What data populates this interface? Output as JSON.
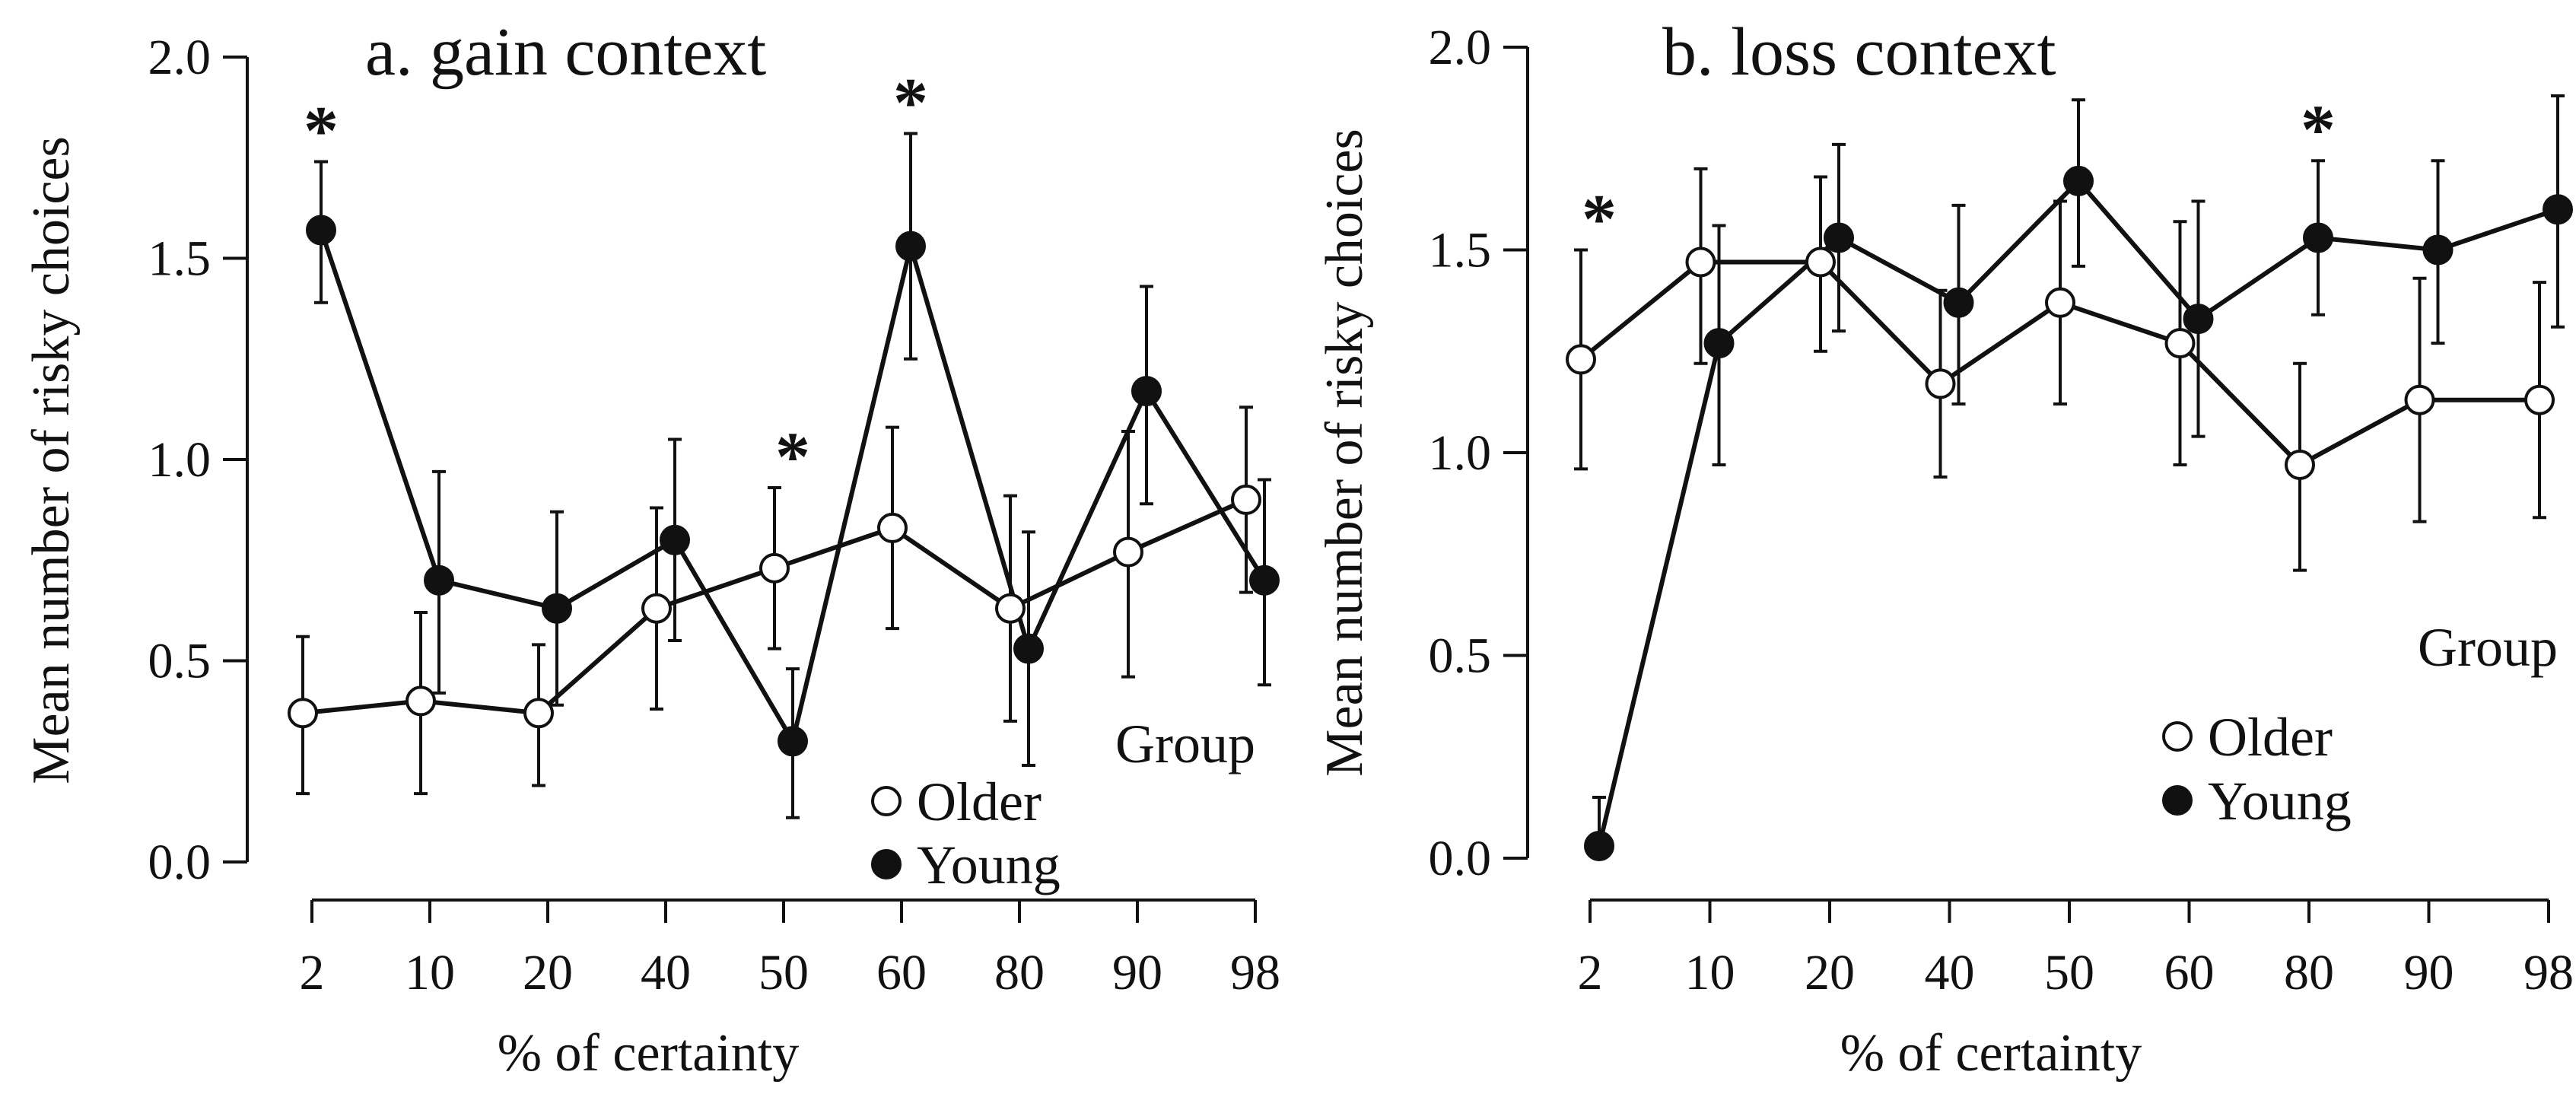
{
  "chart_data": [
    {
      "type": "line",
      "title": "a. gain context",
      "xlabel": "% of certainty",
      "ylabel": "Mean number of risky choices",
      "categories": [
        "2",
        "10",
        "20",
        "40",
        "50",
        "60",
        "80",
        "90",
        "98"
      ],
      "ylim": [
        0,
        2
      ],
      "yticks": [
        "0.0",
        "0.5",
        "1.0",
        "1.5",
        "2.0"
      ],
      "legend_title": "Group",
      "legend_position": "bottom-right",
      "series": [
        {
          "name": "Older",
          "marker": "open-circle",
          "values": [
            0.37,
            0.4,
            0.37,
            0.63,
            0.73,
            0.83,
            0.63,
            0.77,
            0.9
          ],
          "err_low": [
            0.17,
            0.17,
            0.19,
            0.38,
            0.53,
            0.58,
            0.35,
            0.46,
            0.67
          ],
          "err_high": [
            0.56,
            0.62,
            0.54,
            0.88,
            0.93,
            1.08,
            0.91,
            1.07,
            1.13
          ]
        },
        {
          "name": "Young",
          "marker": "filled-circle",
          "values": [
            1.57,
            0.7,
            0.63,
            0.8,
            0.3,
            1.53,
            0.53,
            1.17,
            0.7
          ],
          "err_low": [
            1.39,
            0.42,
            0.39,
            0.55,
            0.11,
            1.25,
            0.24,
            0.89,
            0.44
          ],
          "err_high": [
            1.74,
            0.97,
            0.87,
            1.05,
            0.48,
            1.81,
            0.82,
            1.43,
            0.95
          ]
        }
      ],
      "significance": [
        {
          "category": "2",
          "label": "*"
        },
        {
          "category": "50",
          "label": "*"
        },
        {
          "category": "60",
          "label": "*"
        }
      ]
    },
    {
      "type": "line",
      "title": "b. loss context",
      "xlabel": "% of certainty",
      "ylabel": "Mean number of risky choices",
      "categories": [
        "2",
        "10",
        "20",
        "40",
        "50",
        "60",
        "80",
        "90",
        "98"
      ],
      "ylim": [
        0,
        2
      ],
      "yticks": [
        "0.0",
        "0.5",
        "1.0",
        "1.5",
        "2.0"
      ],
      "legend_title": "Group",
      "legend_position": "right",
      "series": [
        {
          "name": "Older",
          "marker": "open-circle",
          "values": [
            1.23,
            1.47,
            1.47,
            1.17,
            1.37,
            1.27,
            0.97,
            1.13,
            1.13
          ],
          "err_low": [
            0.96,
            1.22,
            1.25,
            0.94,
            1.12,
            0.97,
            0.71,
            0.83,
            0.84
          ],
          "err_high": [
            1.5,
            1.7,
            1.68,
            1.4,
            1.62,
            1.57,
            1.22,
            1.43,
            1.42
          ]
        },
        {
          "name": "Young",
          "marker": "filled-circle",
          "values": [
            0.03,
            1.27,
            1.53,
            1.37,
            1.67,
            1.33,
            1.53,
            1.5,
            1.6
          ],
          "err_low": [
            0.03,
            0.97,
            1.3,
            1.12,
            1.46,
            1.04,
            1.34,
            1.27,
            1.31
          ],
          "err_high": [
            0.15,
            1.56,
            1.76,
            1.61,
            1.87,
            1.62,
            1.72,
            1.72,
            1.88
          ]
        }
      ],
      "significance": [
        {
          "category": "2",
          "label": "*"
        },
        {
          "category": "80",
          "label": "*"
        }
      ]
    }
  ]
}
